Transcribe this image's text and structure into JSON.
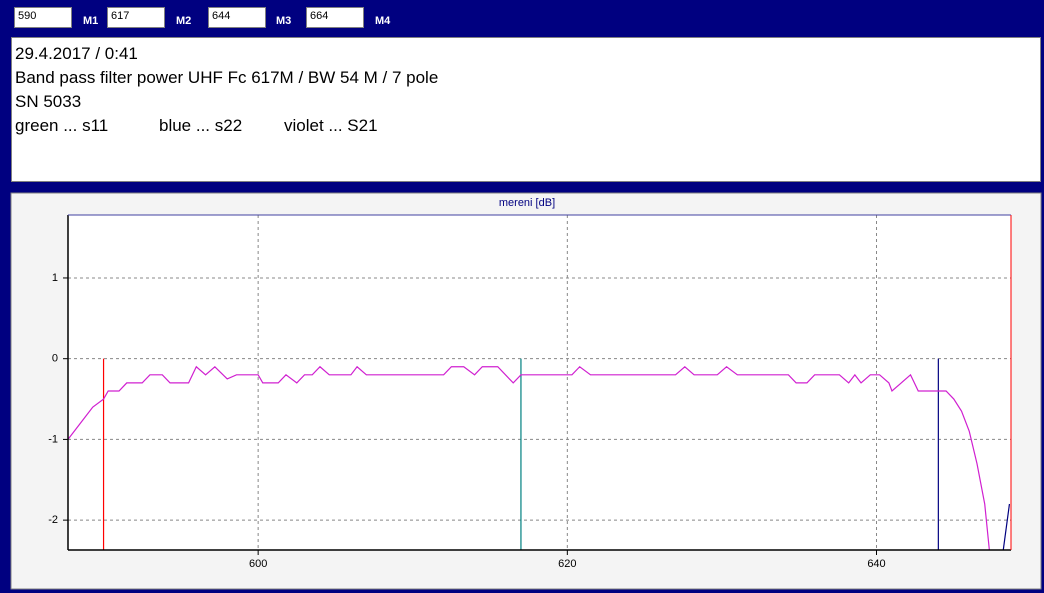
{
  "marker_labels": [
    "M1",
    "M2",
    "M3",
    "M4"
  ],
  "notes": {
    "lines": [
      "29.4.2017 / 0:41",
      "Band pass filter power UHF Fc 617M / BW 54 M  / 7 pole",
      "SN 5033"
    ],
    "legend": [
      "green ... s11",
      "blue ... s22",
      "violet ... S21"
    ]
  },
  "chart_data": {
    "type": "line",
    "title": "mereni [dB]",
    "xlim": [
      587.7,
      648.7
    ],
    "ylim": [
      -2.37,
      1.78
    ],
    "xticks": [
      600,
      620,
      640
    ],
    "yticks": [
      -2,
      -1,
      0,
      1
    ],
    "grid": true,
    "markers": [
      590,
      617,
      644,
      664
    ],
    "marker_colors": [
      "#ff0000",
      "#008080",
      "#000080",
      "#000080"
    ],
    "series": [
      {
        "color": "#d020d0",
        "x": [
          587.7,
          588.5,
          589.3,
          590,
          590.3,
          591,
          591.5,
          592.5,
          593,
          593.8,
          594.3,
          595.5,
          596,
          596.6,
          597.2,
          598,
          598.6,
          600,
          600.3,
          601.3,
          601.8,
          602.5,
          603,
          603.5,
          604,
          604.6,
          606,
          606.4,
          607,
          612,
          612.5,
          613.3,
          614,
          614.5,
          615.5,
          616.5,
          617,
          620.3,
          620.8,
          621.5,
          627,
          627.6,
          628.2,
          629.7,
          630.3,
          631,
          634.3,
          634.8,
          635.5,
          636,
          637.6,
          638.2,
          638.6,
          639,
          639.6,
          640.2,
          640.8,
          641,
          641.6,
          642.2,
          642.7,
          644.5,
          645,
          645.5,
          646,
          646.5,
          647,
          647.3
        ],
        "values": [
          -1.0,
          -0.8,
          -0.6,
          -0.5,
          -0.4,
          -0.4,
          -0.3,
          -0.3,
          -0.2,
          -0.2,
          -0.3,
          -0.3,
          -0.1,
          -0.2,
          -0.1,
          -0.25,
          -0.2,
          -0.2,
          -0.3,
          -0.3,
          -0.2,
          -0.3,
          -0.2,
          -0.2,
          -0.1,
          -0.2,
          -0.2,
          -0.1,
          -0.2,
          -0.2,
          -0.1,
          -0.1,
          -0.2,
          -0.1,
          -0.1,
          -0.3,
          -0.2,
          -0.2,
          -0.1,
          -0.2,
          -0.2,
          -0.1,
          -0.2,
          -0.2,
          -0.1,
          -0.2,
          -0.2,
          -0.3,
          -0.3,
          -0.2,
          -0.2,
          -0.3,
          -0.2,
          -0.3,
          -0.2,
          -0.2,
          -0.3,
          -0.4,
          -0.3,
          -0.2,
          -0.4,
          -0.4,
          -0.5,
          -0.65,
          -0.9,
          -1.3,
          -1.8,
          -2.37
        ]
      },
      {
        "color": "#000080",
        "x": [
          648.2,
          648.6
        ],
        "values": [
          -2.37,
          -1.8
        ]
      }
    ]
  }
}
